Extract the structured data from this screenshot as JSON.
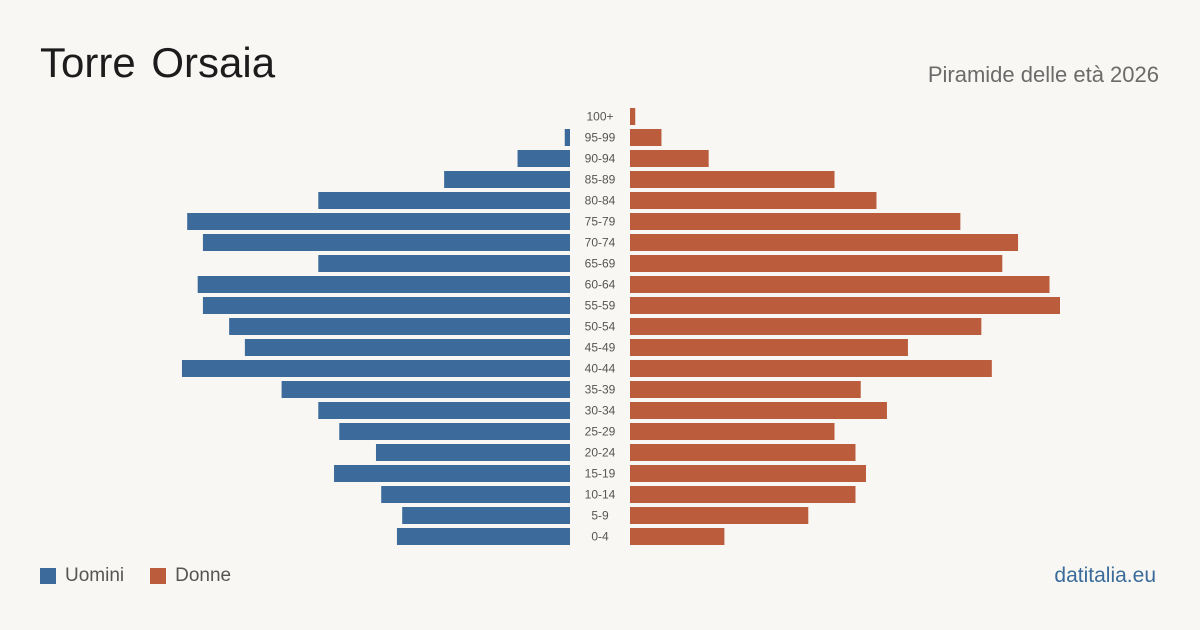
{
  "header": {
    "title": "Torre Orsaia",
    "subtitle": "Piramide delle età 2026"
  },
  "legend": {
    "men_label": "Uomini",
    "women_label": "Donne"
  },
  "colors": {
    "men": "#3c6a9a",
    "women": "#bb5c3c",
    "background": "#f9f7f3"
  },
  "source": "datitalia.eu",
  "chart_data": {
    "type": "bar",
    "orientation": "horizontal-pyramid",
    "categories": [
      "100+",
      "95-99",
      "90-94",
      "85-89",
      "80-84",
      "75-79",
      "70-74",
      "65-69",
      "60-64",
      "55-59",
      "50-54",
      "45-49",
      "40-44",
      "35-39",
      "30-34",
      "25-29",
      "20-24",
      "15-19",
      "10-14",
      "5-9",
      "0-4"
    ],
    "series": [
      {
        "name": "Uomini",
        "values": [
          0,
          1,
          10,
          24,
          48,
          73,
          70,
          48,
          71,
          70,
          65,
          62,
          74,
          55,
          48,
          44,
          37,
          45,
          36,
          32,
          33
        ]
      },
      {
        "name": "Donne",
        "values": [
          1,
          6,
          15,
          39,
          47,
          63,
          74,
          71,
          80,
          82,
          67,
          53,
          69,
          44,
          49,
          39,
          43,
          45,
          43,
          34,
          18
        ]
      }
    ],
    "xlim": [
      0,
      82
    ],
    "grid": false,
    "legend_position": "bottom-left"
  }
}
